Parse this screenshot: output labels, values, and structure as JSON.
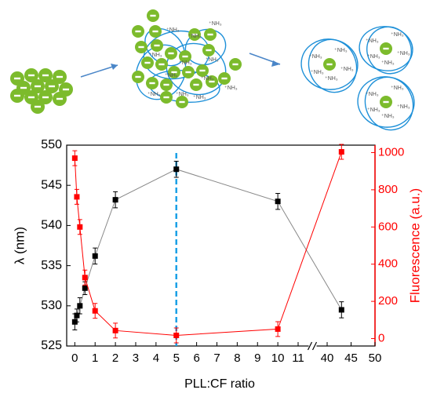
{
  "schematic": {
    "amine_label": "⁺NH₃"
  },
  "chart_data": {
    "type": "line",
    "x": [
      0,
      0.1,
      0.25,
      0.5,
      1,
      2,
      5,
      10,
      43
    ],
    "series": [
      {
        "color": "#000000",
        "line_color": "#888888",
        "values": [
          528.0,
          528.8,
          530.0,
          532.2,
          536.2,
          543.2,
          547.0,
          543.0,
          529.5
        ],
        "errors": [
          1,
          0.8,
          1,
          0.8,
          1,
          1,
          1,
          1,
          1
        ]
      },
      {
        "color": "#ff0000",
        "axis": "y2",
        "values": [
          970,
          762,
          600,
          328,
          149,
          43,
          17,
          51,
          1004
        ],
        "errors": [
          40,
          40,
          40,
          40,
          40,
          40,
          40,
          40,
          40
        ]
      }
    ],
    "xlabel": "PLL:CF ratio",
    "ylabel": "λ (nm)",
    "y2label": "Fluorescence (a.u.)",
    "xlim": [
      -0.4,
      50
    ],
    "x_break": [
      11,
      40
    ],
    "xticks": [
      0,
      1,
      2,
      3,
      4,
      5,
      6,
      7,
      8,
      9,
      10,
      11,
      40,
      45,
      50
    ],
    "ylim": [
      525,
      550
    ],
    "yticks": [
      525,
      530,
      535,
      540,
      545,
      550
    ],
    "y2lim": [
      -40,
      1040
    ],
    "y2ticks": [
      0,
      200,
      400,
      600,
      800,
      1000
    ],
    "y2_color": "#ff0000",
    "vline_x": 5,
    "vline_color": "#1aa0e6"
  }
}
